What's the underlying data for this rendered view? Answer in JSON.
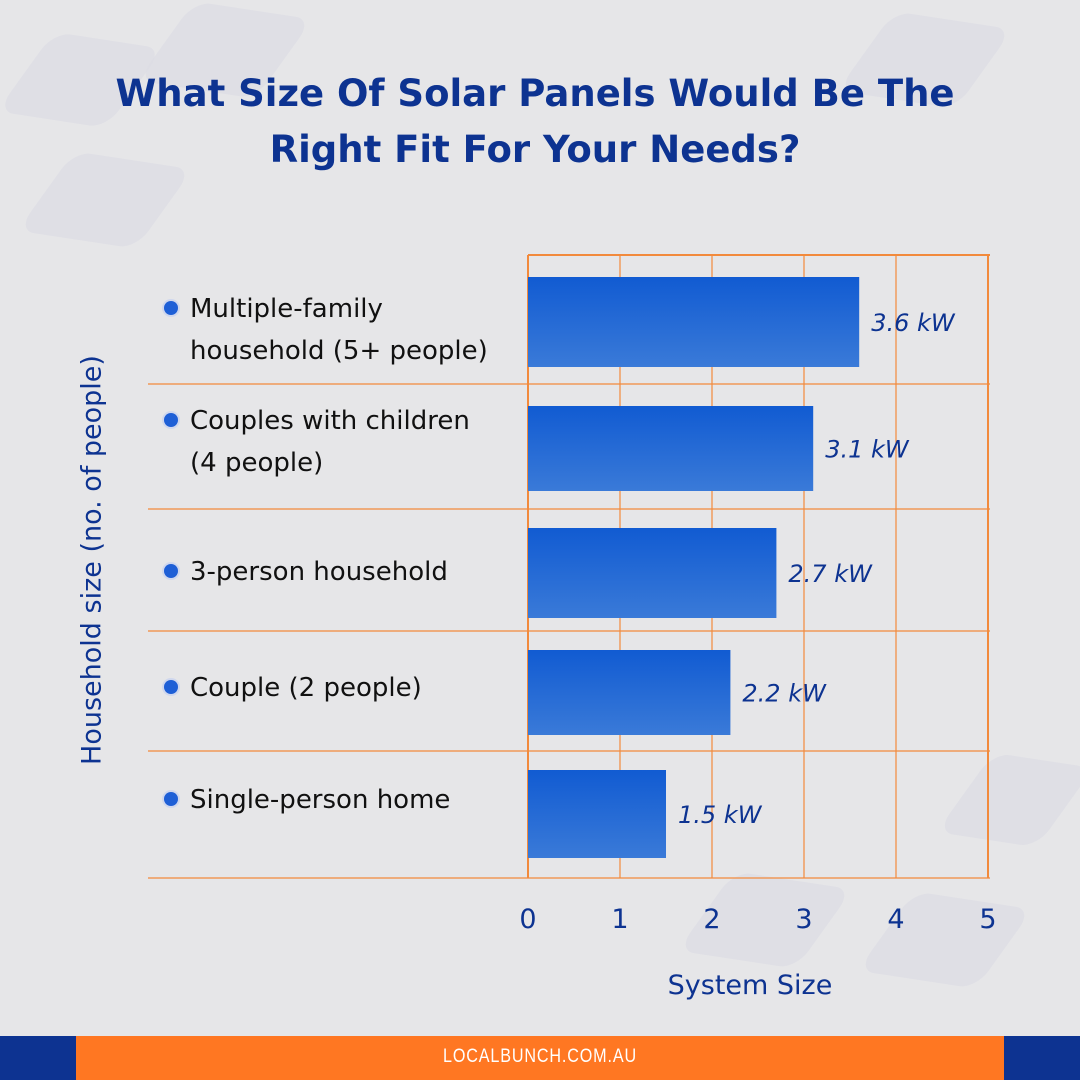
{
  "title_lines": [
    "What Size Of Solar Panels Would Be The",
    "Right Fit For Your Needs?"
  ],
  "footer": {
    "url": "LOCALBUNCH.COM.AU"
  },
  "colors": {
    "bar": "#1a5fd4",
    "grid": "#f28a3c",
    "title": "#0d3391",
    "footer": "#ff7722",
    "footer_side": "#0d3391"
  },
  "chart_data": {
    "type": "bar",
    "orientation": "horizontal",
    "title": "What Size Of Solar Panels Would Be The Right Fit For Your Needs?",
    "xlabel": "System Size",
    "ylabel": "Household size (no. of people)",
    "categories": [
      [
        "Multiple-family",
        "household (5+ people)"
      ],
      [
        "Couples with children",
        "(4 people)"
      ],
      [
        "3-person household"
      ],
      [
        "Couple (2 people)"
      ],
      [
        "Single-person home"
      ]
    ],
    "values": [
      3.6,
      3.1,
      2.7,
      2.2,
      1.5
    ],
    "data_labels": [
      "3.6 kW",
      "3.1 kW",
      "2.7 kW",
      "2.2 kW",
      "1.5  kW"
    ],
    "xlim": [
      0,
      5
    ],
    "xticks": [
      "0",
      "1",
      "2",
      "3",
      "4",
      "5"
    ],
    "grid": true
  }
}
